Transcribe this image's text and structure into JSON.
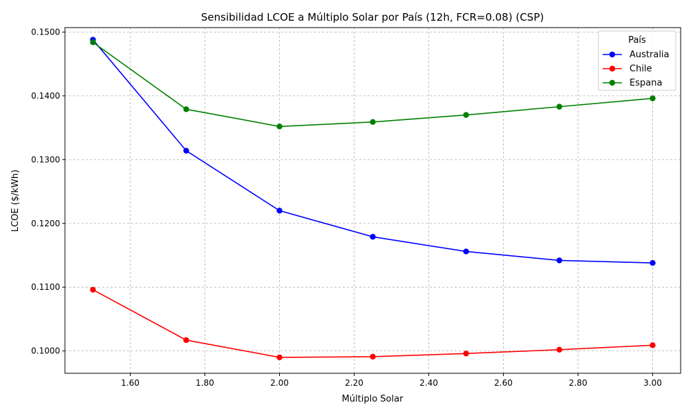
{
  "chart_data": {
    "type": "line",
    "title": "Sensibilidad LCOE a Múltiplo Solar por País (12h, FCR=0.08) (CSP)",
    "xlabel": "Múltiplo Solar",
    "ylabel": "LCOE ($/kWh)",
    "xlim": [
      1.425,
      3.075
    ],
    "ylim": [
      0.0965,
      0.1507
    ],
    "x_ticks": [
      1.6,
      1.8,
      2.0,
      2.2,
      2.4,
      2.6,
      2.8,
      3.0
    ],
    "x_tick_labels": [
      "1.60",
      "1.80",
      "2.00",
      "2.20",
      "2.40",
      "2.60",
      "2.80",
      "3.00"
    ],
    "y_ticks": [
      0.1,
      0.11,
      0.12,
      0.13,
      0.14,
      0.15
    ],
    "y_tick_labels": [
      "0.1000",
      "0.1100",
      "0.1200",
      "0.1300",
      "0.1400",
      "0.1500"
    ],
    "grid": true,
    "legend": {
      "title": "País",
      "position": "top-right"
    },
    "x": [
      1.5,
      1.75,
      2.0,
      2.25,
      2.5,
      2.75,
      3.0
    ],
    "series": [
      {
        "name": "Australia",
        "color": "#0000ff",
        "values": [
          0.1488,
          0.1314,
          0.122,
          0.1179,
          0.1156,
          0.1142,
          0.1138
        ]
      },
      {
        "name": "Chile",
        "color": "#ff0000",
        "values": [
          0.1096,
          0.1017,
          0.099,
          0.0991,
          0.0996,
          0.1002,
          0.1009
        ]
      },
      {
        "name": "Espana",
        "color": "#008000",
        "values": [
          0.1484,
          0.1379,
          0.1352,
          0.1359,
          0.137,
          0.1383,
          0.1396
        ]
      }
    ]
  }
}
